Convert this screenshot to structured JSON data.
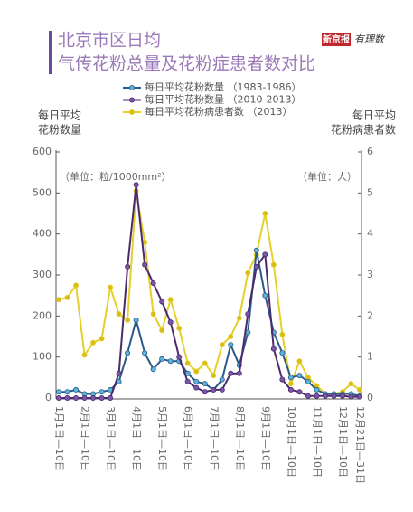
{
  "chart_data": {
    "type": "line",
    "title": [
      "北京市区日均",
      "气传花粉总量及花粉症患者数对比"
    ],
    "logo": [
      "新京报",
      "有理数"
    ],
    "ylabel": [
      "每日平均",
      "花粉数量"
    ],
    "y2label": [
      "每日平均",
      "花粉病患者数"
    ],
    "yunit": "（单位：粒/1000mm²）",
    "y2unit": "（单位：人）",
    "categories": [
      "1月1日—10日",
      null,
      null,
      "2月1日—10日",
      null,
      null,
      "3月1日—10日",
      null,
      null,
      "4月1日—10日",
      null,
      null,
      "5月1日—10日",
      null,
      null,
      "6月1日—10日",
      null,
      null,
      "7月1日—10日",
      null,
      null,
      "8月1日—10日",
      null,
      null,
      "9月1日—10日",
      null,
      null,
      "10月1日—10日",
      null,
      null,
      "11月1日—10日",
      null,
      null,
      "12月1日—10日",
      null,
      "12月21日—31日"
    ],
    "ylim": [
      0,
      600
    ],
    "yticks": [
      0,
      100,
      200,
      300,
      400,
      500,
      600
    ],
    "y2lim": [
      0,
      6
    ],
    "y2ticks": [
      0,
      1,
      2,
      3,
      4,
      5,
      6
    ],
    "series": [
      {
        "name": "每日平均花粉数量 （1983-1986）",
        "color": "#2a5a8a",
        "marker_color": "#5bb5d9",
        "values": [
          15,
          15,
          20,
          10,
          10,
          15,
          20,
          40,
          110,
          190,
          110,
          70,
          95,
          90,
          90,
          60,
          40,
          35,
          20,
          45,
          130,
          80,
          160,
          360,
          250,
          160,
          110,
          50,
          55,
          40,
          20,
          10,
          10,
          10,
          10,
          5
        ]
      },
      {
        "name": "每日平均花粉数量 （2010-2013）",
        "color": "#4b2a6e",
        "marker_color": "#7a55a8",
        "values": [
          0,
          0,
          0,
          0,
          0,
          0,
          0,
          60,
          320,
          520,
          325,
          280,
          235,
          185,
          100,
          40,
          25,
          15,
          20,
          20,
          60,
          60,
          205,
          320,
          350,
          120,
          45,
          20,
          15,
          5,
          5,
          5,
          5,
          5,
          3,
          3
        ]
      },
      {
        "name": "每日平均花粉病患者数 （2013）",
        "color": "#e5cf2a",
        "marker_color": "#d9bd14",
        "axis": "y2",
        "values": [
          2.4,
          2.45,
          2.75,
          1.05,
          1.35,
          1.45,
          2.7,
          2.05,
          1.9,
          5.05,
          3.8,
          2.05,
          1.65,
          2.4,
          1.7,
          0.85,
          0.65,
          0.85,
          0.55,
          1.3,
          1.5,
          1.95,
          3.05,
          3.5,
          4.5,
          3.25,
          1.55,
          0.35,
          0.9,
          0.5,
          0.3,
          0.1,
          0.1,
          0.15,
          0.35,
          0.2
        ]
      }
    ]
  }
}
